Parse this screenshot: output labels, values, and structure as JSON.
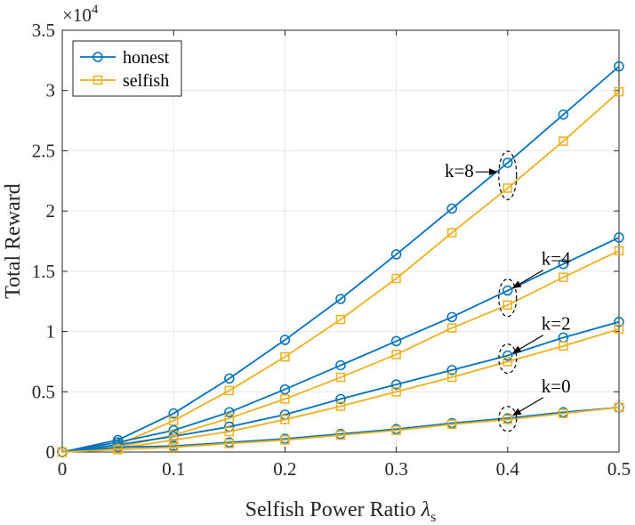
{
  "chart_data": {
    "type": "line",
    "xlabel": "Selfish Power Ratio",
    "xlabel_symbol": "λ",
    "xlabel_subscript": "s",
    "ylabel": "Total Reward",
    "y_multiplier": "×10",
    "y_multiplier_exp": "4",
    "x": [
      0,
      0.05,
      0.1,
      0.15,
      0.2,
      0.25,
      0.3,
      0.35,
      0.4,
      0.45,
      0.5
    ],
    "xlim": [
      0,
      0.5
    ],
    "ylim": [
      0,
      3.5
    ],
    "x_ticks": [
      "0",
      "0.1",
      "0.2",
      "0.3",
      "0.4",
      "0.5"
    ],
    "y_ticks": [
      "0",
      "0.5",
      "1",
      "1.5",
      "2",
      "2.5",
      "3",
      "3.5"
    ],
    "grid": true,
    "legend_position": "top-left",
    "legend": [
      {
        "name": "honest",
        "color": "#0072BD",
        "marker": "circle"
      },
      {
        "name": "selfish",
        "color": "#EDB120",
        "marker": "square"
      }
    ],
    "series": [
      {
        "group": "k=8",
        "kind": "honest",
        "values": [
          0,
          0.1,
          0.32,
          0.61,
          0.93,
          1.27,
          1.64,
          2.02,
          2.4,
          2.8,
          3.2
        ]
      },
      {
        "group": "k=8",
        "kind": "selfish",
        "values": [
          0,
          0.06,
          0.26,
          0.51,
          0.79,
          1.1,
          1.44,
          1.82,
          2.19,
          2.58,
          2.99
        ]
      },
      {
        "group": "k=4",
        "kind": "honest",
        "values": [
          0,
          0.08,
          0.18,
          0.33,
          0.52,
          0.72,
          0.92,
          1.12,
          1.34,
          1.56,
          1.78
        ]
      },
      {
        "group": "k=4",
        "kind": "selfish",
        "values": [
          0,
          0.04,
          0.14,
          0.28,
          0.44,
          0.62,
          0.81,
          1.03,
          1.22,
          1.45,
          1.67
        ]
      },
      {
        "group": "k=2",
        "kind": "honest",
        "values": [
          0,
          0.06,
          0.13,
          0.21,
          0.31,
          0.44,
          0.56,
          0.68,
          0.8,
          0.95,
          1.08
        ]
      },
      {
        "group": "k=2",
        "kind": "selfish",
        "values": [
          0,
          0.03,
          0.1,
          0.17,
          0.27,
          0.38,
          0.5,
          0.62,
          0.75,
          0.88,
          1.02
        ]
      },
      {
        "group": "k=0",
        "kind": "honest",
        "values": [
          0,
          0.04,
          0.05,
          0.08,
          0.11,
          0.15,
          0.19,
          0.24,
          0.28,
          0.33,
          0.37
        ]
      },
      {
        "group": "k=0",
        "kind": "selfish",
        "values": [
          0,
          0.02,
          0.04,
          0.07,
          0.1,
          0.14,
          0.18,
          0.23,
          0.27,
          0.32,
          0.37
        ]
      }
    ],
    "annotations": [
      {
        "label": "k=8",
        "x": 0.4,
        "y_low": 2.19,
        "y_high": 2.4,
        "text_side": "left"
      },
      {
        "label": "k=4",
        "x": 0.4,
        "y_low": 1.22,
        "y_high": 1.34,
        "text_side": "upper-right"
      },
      {
        "label": "k=2",
        "x": 0.4,
        "y_low": 0.75,
        "y_high": 0.8,
        "text_side": "upper-right"
      },
      {
        "label": "k=0",
        "x": 0.4,
        "y_low": 0.27,
        "y_high": 0.28,
        "text_side": "upper-right"
      }
    ]
  }
}
